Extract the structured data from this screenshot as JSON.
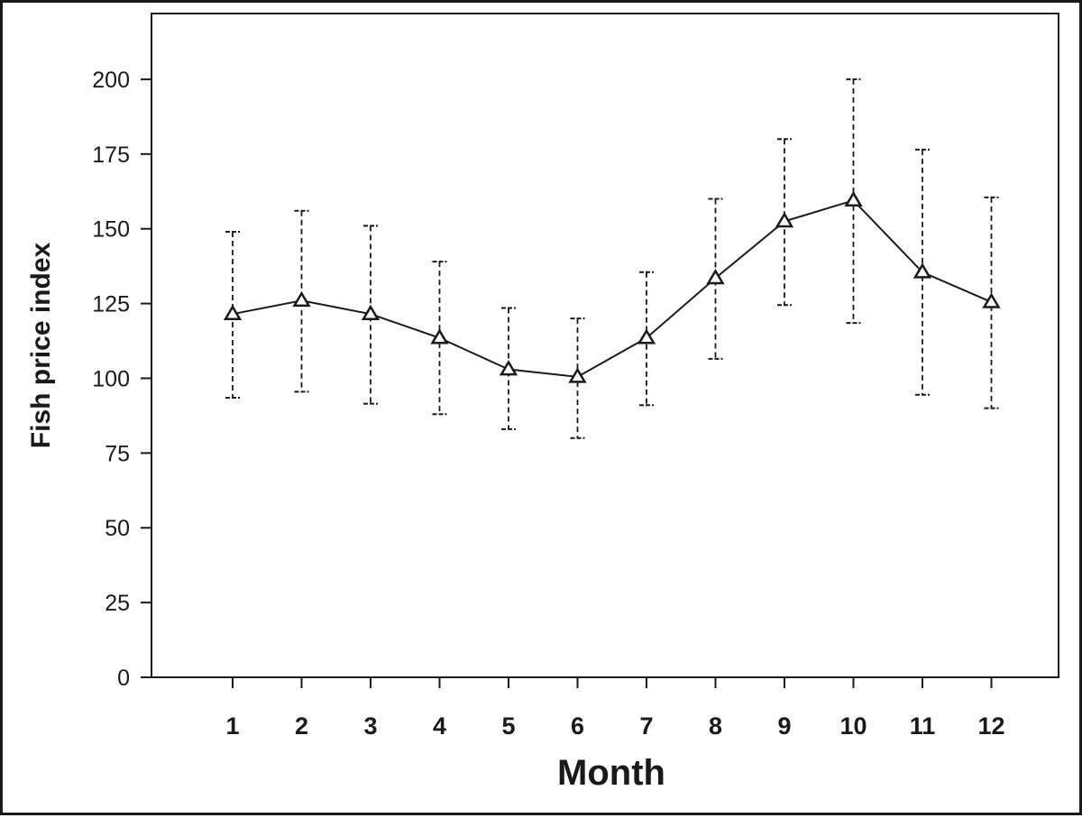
{
  "chart_data": {
    "type": "line",
    "title": "",
    "xlabel": "Month",
    "ylabel": "Fish price index",
    "categories": [
      "1",
      "2",
      "3",
      "4",
      "5",
      "6",
      "7",
      "8",
      "9",
      "10",
      "11",
      "12"
    ],
    "series": [
      {
        "name": "Fish price index",
        "marker": "triangle",
        "values": [
          121.5,
          126,
          121.5,
          113.5,
          103,
          100.5,
          113.5,
          133.5,
          152.5,
          159.5,
          135.5,
          125.5
        ],
        "error_low": [
          93.5,
          95.5,
          91.5,
          88,
          83,
          80,
          91,
          106.5,
          124.5,
          118.5,
          94.5,
          90
        ],
        "error_high": [
          149,
          156,
          151,
          139,
          123.5,
          120,
          135.5,
          160,
          180,
          200,
          176.5,
          160.5
        ]
      }
    ],
    "yticks": [
      0,
      25,
      50,
      75,
      100,
      125,
      150,
      175,
      200
    ],
    "ylim": [
      0,
      222
    ],
    "grid": false,
    "colors": {
      "line": "#1a1a1a",
      "error_bar": "#1a1a1a",
      "axis": "#1a1a1a"
    }
  }
}
